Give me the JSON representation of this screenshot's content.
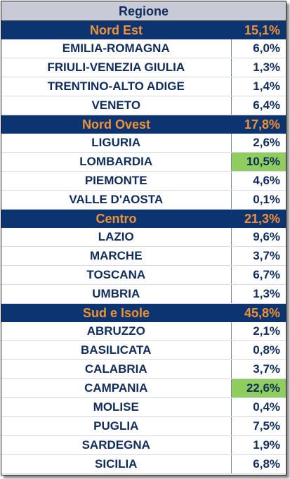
{
  "header": {
    "title": "Regione"
  },
  "groups": [
    {
      "name": "Nord Est",
      "pct": "15,1%",
      "regions": [
        {
          "name": "EMILIA-ROMAGNA",
          "pct": "6,0%"
        },
        {
          "name": "FRIULI-VENEZIA GIULIA",
          "pct": "1,3%"
        },
        {
          "name": "TRENTINO-ALTO ADIGE",
          "pct": "1,4%"
        },
        {
          "name": "VENETO",
          "pct": "6,4%"
        }
      ]
    },
    {
      "name": "Nord Ovest",
      "pct": "17,8%",
      "regions": [
        {
          "name": "LIGURIA",
          "pct": "2,6%"
        },
        {
          "name": "LOMBARDIA",
          "pct": "10,5%",
          "highlight": true
        },
        {
          "name": "PIEMONTE",
          "pct": "4,6%"
        },
        {
          "name": "VALLE D'AOSTA",
          "pct": "0,1%"
        }
      ]
    },
    {
      "name": "Centro",
      "pct": "21,3%",
      "regions": [
        {
          "name": "LAZIO",
          "pct": "9,6%"
        },
        {
          "name": "MARCHE",
          "pct": "3,7%"
        },
        {
          "name": "TOSCANA",
          "pct": "6,7%"
        },
        {
          "name": "UMBRIA",
          "pct": "1,3%"
        }
      ]
    },
    {
      "name": "Sud e Isole",
      "pct": "45,8%",
      "regions": [
        {
          "name": "ABRUZZO",
          "pct": "2,1%"
        },
        {
          "name": "BASILICATA",
          "pct": "0,8%"
        },
        {
          "name": "CALABRIA",
          "pct": "3,7%"
        },
        {
          "name": "CAMPANIA",
          "pct": "22,6%",
          "highlight": true
        },
        {
          "name": "MOLISE",
          "pct": "0,4%"
        },
        {
          "name": "PUGLIA",
          "pct": "7,5%"
        },
        {
          "name": "SARDEGNA",
          "pct": "1,9%"
        },
        {
          "name": "SICILIA",
          "pct": "6,8%"
        }
      ]
    }
  ],
  "colors": {
    "header_bg": "#c8cad6",
    "group_bg": "#0c3470",
    "group_text": "#f19236",
    "region_text": "#0f2c5c",
    "highlight": "#8fce5e"
  }
}
